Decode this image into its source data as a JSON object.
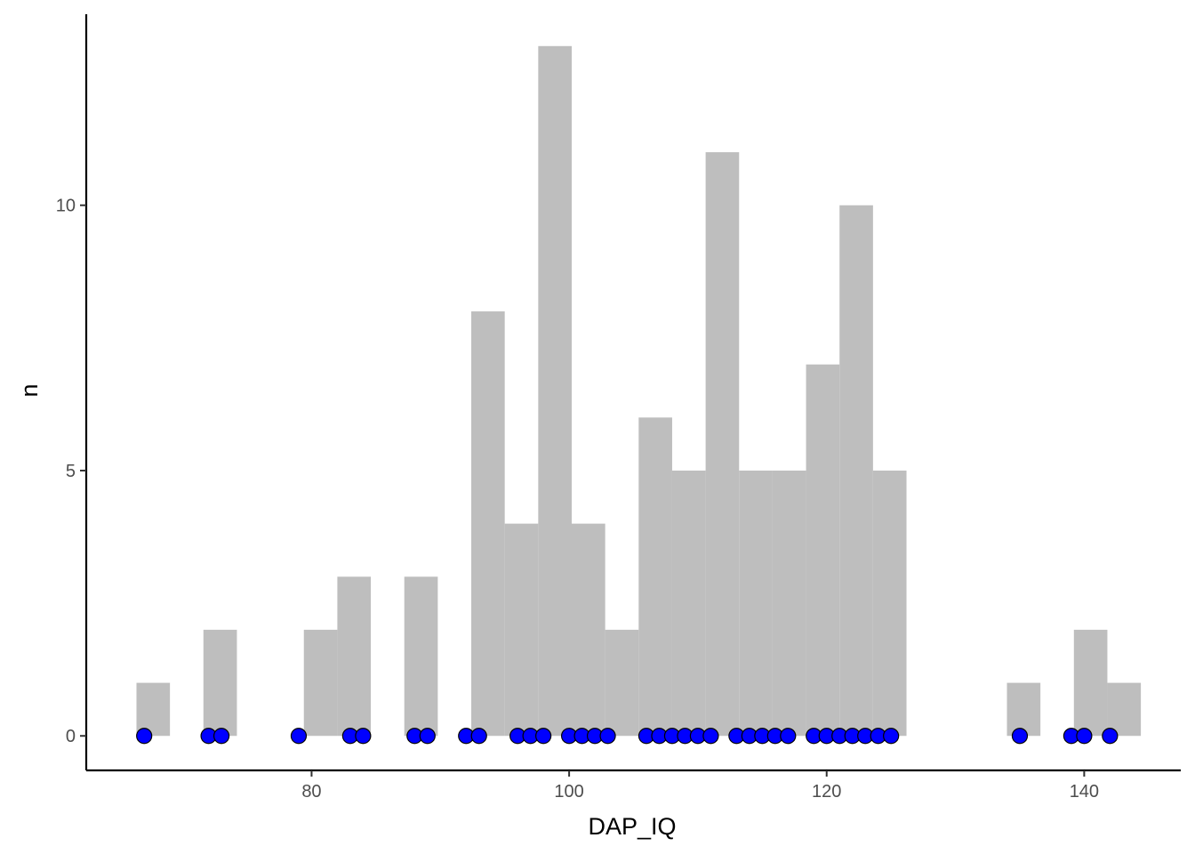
{
  "chart_data": {
    "type": "histogram",
    "title": "",
    "xlabel": "DAP_IQ",
    "ylabel": "n",
    "xlim": [
      62.5,
      147.5
    ],
    "ylim": [
      -0.65,
      13.6
    ],
    "x_ticks": [
      80,
      100,
      120,
      140
    ],
    "y_ticks": [
      0,
      5,
      10
    ],
    "bin_width": 2.6,
    "grid": false,
    "legend": "none",
    "colors": {
      "bars": "#bebebe",
      "points_fill": "#0000ff",
      "points_stroke": "#000000",
      "axis": "#000000"
    },
    "bins": [
      {
        "start": 66.4,
        "end": 69.0,
        "count": 1
      },
      {
        "start": 69.0,
        "end": 71.6,
        "count": 0
      },
      {
        "start": 71.6,
        "end": 74.2,
        "count": 2
      },
      {
        "start": 74.2,
        "end": 76.8,
        "count": 0
      },
      {
        "start": 76.8,
        "end": 79.4,
        "count": 0
      },
      {
        "start": 79.4,
        "end": 82.0,
        "count": 2
      },
      {
        "start": 82.0,
        "end": 84.6,
        "count": 3
      },
      {
        "start": 84.6,
        "end": 87.2,
        "count": 0
      },
      {
        "start": 87.2,
        "end": 89.8,
        "count": 3
      },
      {
        "start": 89.8,
        "end": 92.4,
        "count": 0
      },
      {
        "start": 92.4,
        "end": 95.0,
        "count": 8
      },
      {
        "start": 95.0,
        "end": 97.6,
        "count": 4
      },
      {
        "start": 97.6,
        "end": 100.2,
        "count": 13
      },
      {
        "start": 100.2,
        "end": 102.8,
        "count": 4
      },
      {
        "start": 102.8,
        "end": 105.4,
        "count": 2
      },
      {
        "start": 105.4,
        "end": 108.0,
        "count": 6
      },
      {
        "start": 108.0,
        "end": 110.6,
        "count": 5
      },
      {
        "start": 110.6,
        "end": 113.2,
        "count": 11
      },
      {
        "start": 113.2,
        "end": 115.8,
        "count": 5
      },
      {
        "start": 115.8,
        "end": 118.4,
        "count": 5
      },
      {
        "start": 118.4,
        "end": 121.0,
        "count": 7
      },
      {
        "start": 121.0,
        "end": 123.6,
        "count": 10
      },
      {
        "start": 123.6,
        "end": 126.2,
        "count": 5
      },
      {
        "start": 126.2,
        "end": 128.8,
        "count": 0
      },
      {
        "start": 128.8,
        "end": 131.4,
        "count": 0
      },
      {
        "start": 131.4,
        "end": 134.0,
        "count": 0
      },
      {
        "start": 134.0,
        "end": 136.6,
        "count": 1
      },
      {
        "start": 136.6,
        "end": 139.2,
        "count": 0
      },
      {
        "start": 139.2,
        "end": 141.8,
        "count": 2
      },
      {
        "start": 141.8,
        "end": 144.4,
        "count": 1
      }
    ],
    "points": {
      "y": 0,
      "x": [
        67,
        72,
        73,
        79,
        83,
        84,
        88,
        89,
        92,
        93,
        96,
        97,
        98,
        100,
        101,
        102,
        103,
        106,
        107,
        108,
        109,
        110,
        111,
        113,
        114,
        115,
        116,
        117,
        119,
        120,
        121,
        122,
        123,
        124,
        125,
        135,
        139,
        140,
        142
      ]
    }
  }
}
